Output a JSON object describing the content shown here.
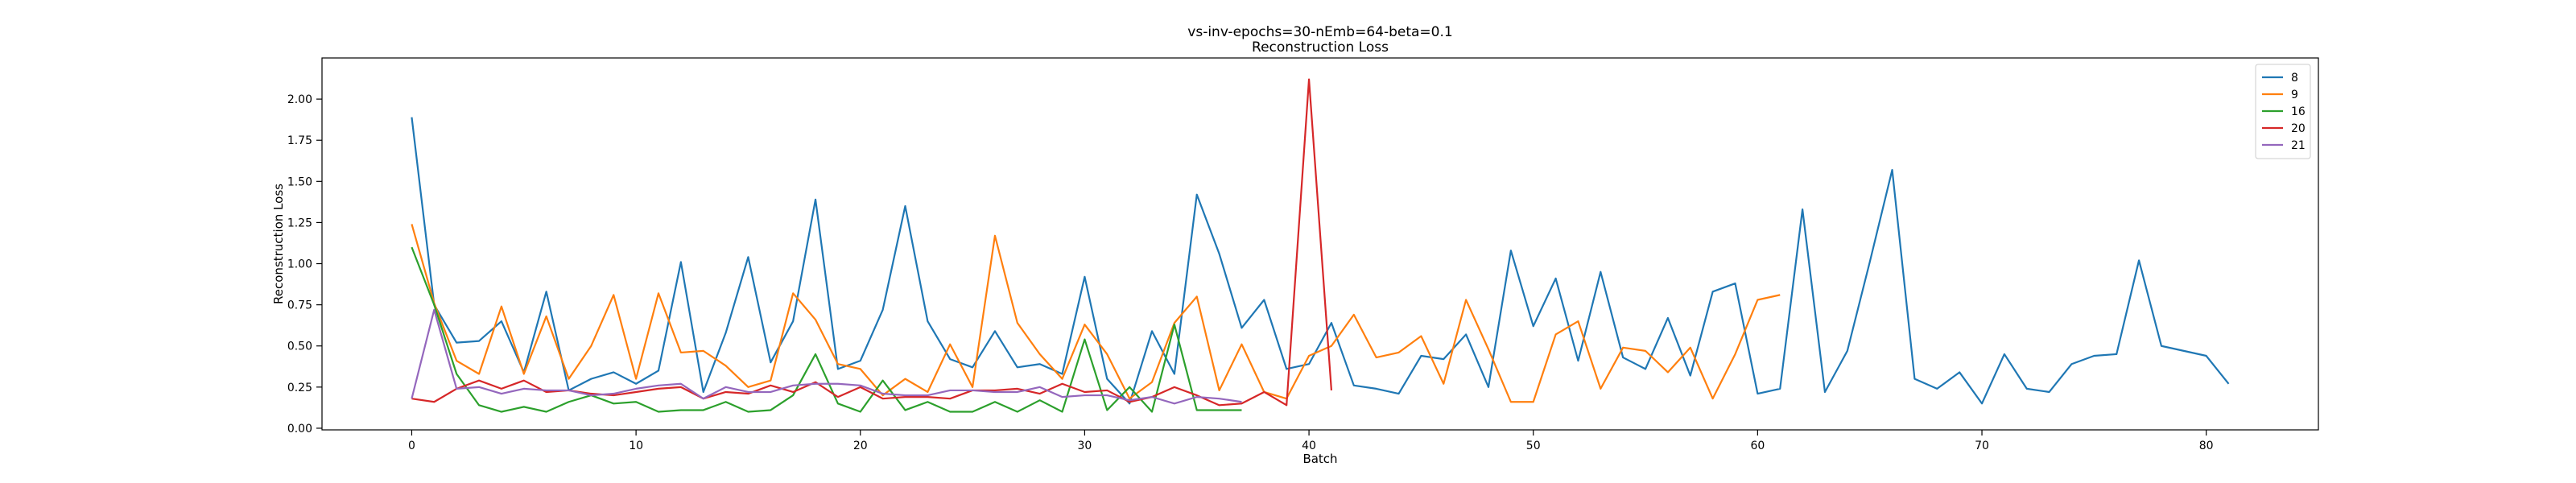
{
  "chart_data": {
    "type": "line",
    "title": "vs-inv-epochs=30-nEmb=64-beta=0.1",
    "subtitle": "Reconstruction Loss",
    "xlabel": "Batch",
    "ylabel": "Reconstruction Loss",
    "xlim": [
      -4,
      85
    ],
    "ylim": [
      -0.01,
      2.25
    ],
    "xticks": [
      0,
      10,
      20,
      30,
      40,
      50,
      60,
      70,
      80
    ],
    "yticks": [
      0.0,
      0.25,
      0.5,
      0.75,
      1.0,
      1.25,
      1.5,
      1.75,
      2.0
    ],
    "ytick_labels": [
      "0.00",
      "0.25",
      "0.50",
      "0.75",
      "1.00",
      "1.25",
      "1.50",
      "1.75",
      "2.00"
    ],
    "grid": false,
    "legend_position": "top-right",
    "series": [
      {
        "name": "8",
        "color": "#1f77b4",
        "values": [
          1.89,
          0.75,
          0.52,
          0.53,
          0.65,
          0.34,
          0.83,
          0.23,
          0.3,
          0.34,
          0.27,
          0.35,
          1.01,
          0.22,
          0.58,
          1.04,
          0.4,
          0.65,
          1.39,
          0.36,
          0.41,
          0.72,
          1.35,
          0.65,
          0.42,
          0.37,
          0.59,
          0.37,
          0.39,
          0.33,
          0.92,
          0.3,
          0.15,
          0.59,
          0.33,
          1.42,
          1.06,
          0.61,
          0.78,
          0.36,
          0.39,
          0.64,
          0.26,
          0.24,
          0.21,
          0.44,
          0.42,
          0.57,
          0.25,
          1.08,
          0.62,
          0.91,
          0.41,
          0.95,
          0.43,
          0.36,
          0.67,
          0.32,
          0.83,
          0.88,
          0.21,
          0.24,
          1.33,
          0.22,
          0.47,
          1.01,
          1.57,
          0.3,
          0.24,
          0.34,
          0.15,
          0.45,
          0.24,
          0.22,
          0.39,
          0.44,
          0.45,
          1.02,
          0.5,
          0.47,
          0.44,
          0.27
        ]
      },
      {
        "name": "9",
        "color": "#ff7f0e",
        "values": [
          1.24,
          0.76,
          0.41,
          0.33,
          0.74,
          0.33,
          0.68,
          0.3,
          0.5,
          0.81,
          0.3,
          0.82,
          0.46,
          0.47,
          0.38,
          0.25,
          0.29,
          0.82,
          0.66,
          0.39,
          0.36,
          0.2,
          0.3,
          0.22,
          0.51,
          0.25,
          1.17,
          0.64,
          0.45,
          0.3,
          0.63,
          0.45,
          0.18,
          0.28,
          0.64,
          0.8,
          0.23,
          0.51,
          0.22,
          0.18,
          0.44,
          0.5,
          0.69,
          0.43,
          0.46,
          0.56,
          0.27,
          0.78,
          0.48,
          0.16,
          0.16,
          0.57,
          0.65,
          0.24,
          0.49,
          0.47,
          0.34,
          0.49,
          0.18,
          0.45,
          0.78,
          0.81
        ]
      },
      {
        "name": "16",
        "color": "#2ca02c",
        "values": [
          1.1,
          0.75,
          0.33,
          0.14,
          0.1,
          0.13,
          0.1,
          0.16,
          0.2,
          0.15,
          0.16,
          0.1,
          0.11,
          0.11,
          0.16,
          0.1,
          0.11,
          0.2,
          0.45,
          0.15,
          0.1,
          0.29,
          0.11,
          0.16,
          0.1,
          0.1,
          0.16,
          0.1,
          0.17,
          0.1,
          0.54,
          0.11,
          0.25,
          0.1,
          0.63,
          0.11,
          0.11,
          0.11
        ]
      },
      {
        "name": "20",
        "color": "#d62728",
        "values": [
          0.18,
          0.16,
          0.24,
          0.29,
          0.24,
          0.29,
          0.22,
          0.23,
          0.21,
          0.2,
          0.22,
          0.24,
          0.25,
          0.18,
          0.22,
          0.21,
          0.26,
          0.22,
          0.28,
          0.19,
          0.25,
          0.18,
          0.19,
          0.19,
          0.18,
          0.23,
          0.23,
          0.24,
          0.21,
          0.27,
          0.22,
          0.23,
          0.16,
          0.19,
          0.25,
          0.2,
          0.14,
          0.15,
          0.22,
          0.14,
          2.12,
          0.23
        ]
      },
      {
        "name": "21",
        "color": "#9467bd",
        "values": [
          0.18,
          0.72,
          0.24,
          0.25,
          0.21,
          0.24,
          0.23,
          0.23,
          0.2,
          0.21,
          0.24,
          0.26,
          0.27,
          0.18,
          0.25,
          0.22,
          0.22,
          0.26,
          0.27,
          0.27,
          0.26,
          0.21,
          0.2,
          0.2,
          0.23,
          0.23,
          0.22,
          0.22,
          0.25,
          0.19,
          0.2,
          0.2,
          0.17,
          0.19,
          0.15,
          0.19,
          0.18,
          0.16
        ]
      }
    ]
  }
}
